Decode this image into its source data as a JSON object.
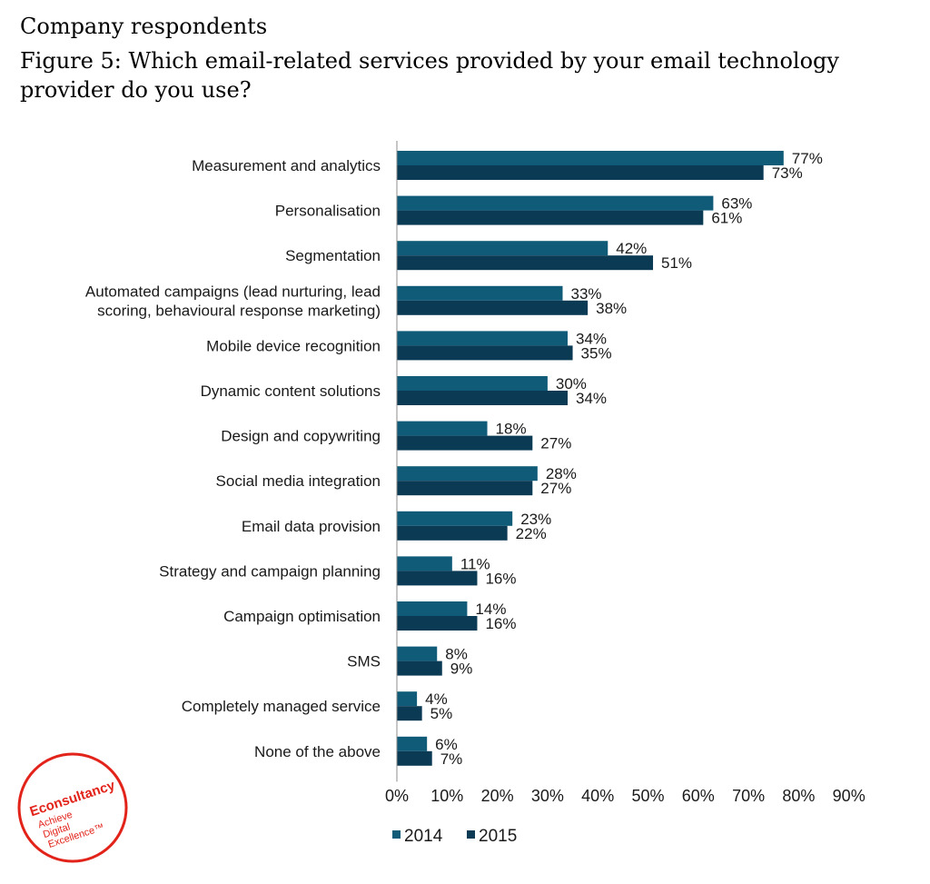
{
  "header": {
    "line1": "Company respondents",
    "line2": "Figure 5: Which email-related services provided by your email technology",
    "line3": "provider do you use?"
  },
  "logo": {
    "brand": "Econsultancy",
    "tagline": [
      "Achieve",
      "Digital",
      "Excellence™"
    ],
    "color": "#e2231a"
  },
  "chart_data": {
    "type": "bar",
    "orientation": "horizontal",
    "categories": [
      [
        "Measurement and analytics"
      ],
      [
        "Personalisation"
      ],
      [
        "Segmentation"
      ],
      [
        "Automated campaigns (lead nurturing, lead",
        "scoring, behavioural response marketing)"
      ],
      [
        "Mobile device recognition"
      ],
      [
        "Dynamic content solutions"
      ],
      [
        "Design and copywriting"
      ],
      [
        "Social media integration"
      ],
      [
        "Email data provision"
      ],
      [
        "Strategy and campaign planning"
      ],
      [
        "Campaign optimisation"
      ],
      [
        "SMS"
      ],
      [
        "Completely managed service"
      ],
      [
        "None of the above"
      ]
    ],
    "series": [
      {
        "name": "2014",
        "color": "#0f5b78",
        "values": [
          77,
          63,
          42,
          33,
          34,
          30,
          18,
          28,
          23,
          11,
          14,
          8,
          4,
          6
        ]
      },
      {
        "name": "2015",
        "color": "#0b3a55",
        "values": [
          73,
          61,
          51,
          38,
          35,
          34,
          27,
          27,
          22,
          16,
          16,
          9,
          5,
          7
        ]
      }
    ],
    "xlim": [
      0,
      90
    ],
    "xticks": [
      "0%",
      "10%",
      "20%",
      "30%",
      "40%",
      "50%",
      "60%",
      "70%",
      "80%",
      "90%"
    ],
    "value_suffix": "%",
    "legend_position": "bottom",
    "grid": false
  }
}
